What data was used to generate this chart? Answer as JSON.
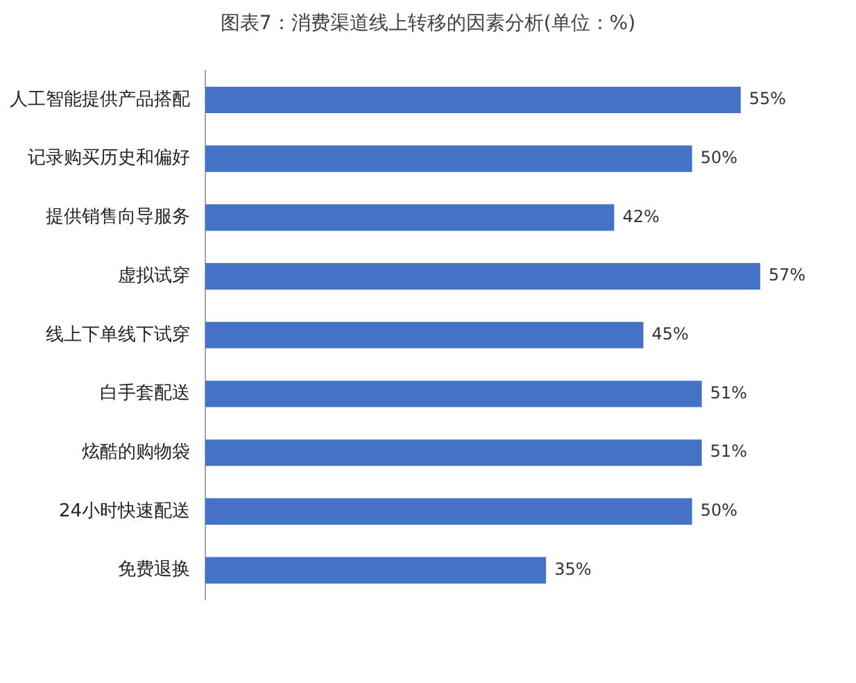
{
  "chart_data": {
    "type": "bar",
    "orientation": "horizontal",
    "relative": false,
    "title": "图表7：消费渠道线上转移的因素分析(单位：%)",
    "categories": [
      "人工智能提供产品搭配",
      "记录购买历史和偏好",
      "提供销售向导服务",
      "虚拟试穿",
      "线上下单线下试穿",
      "白手套配送",
      "炫酷的购物袋",
      "24小时快速配送",
      "免费退换"
    ],
    "values": [
      55,
      50,
      42,
      57,
      45,
      51,
      51,
      50,
      35
    ],
    "value_labels": [
      "55%",
      "50%",
      "42%",
      "57%",
      "45%",
      "51%",
      "51%",
      "50%",
      "35%"
    ],
    "color": "#4472c4",
    "grid": false,
    "legend": false
  }
}
